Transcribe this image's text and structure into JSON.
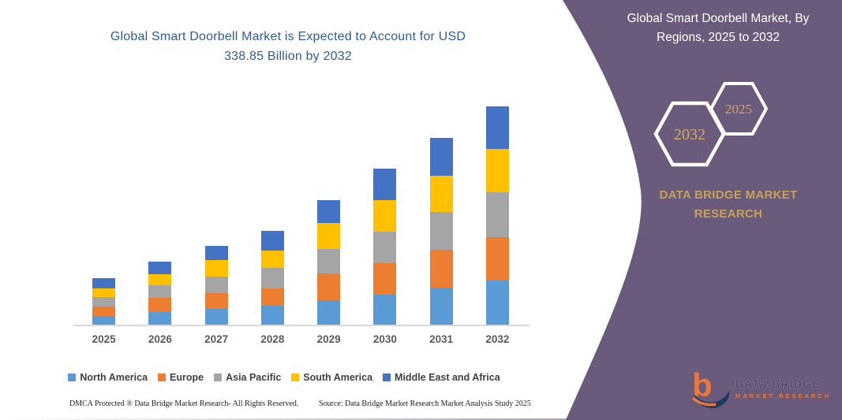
{
  "left": {
    "chart_title": "Global Smart Doorbell Market is Expected to Account for USD 338.85 Billion by 2032",
    "footer_dmca": "DMCA Protected ® Data Bridge Market Research-  All Rights Reserved.",
    "footer_source": "Source: Data Bridge Market Research  Market Analysis Study 2025",
    "title_color": "#2e5b9e"
  },
  "chart_data": {
    "type": "bar",
    "subtype": "stacked",
    "title": "Global Smart Doorbell Market is Expected to Account for USD 338.85 Billion by 2032",
    "unit": "USD Billion",
    "categories": [
      "2025",
      "2026",
      "2027",
      "2028",
      "2029",
      "2030",
      "2031",
      "2032"
    ],
    "series": [
      {
        "name": "North America",
        "color": "#5B9BD5",
        "values": [
          13.8,
          19.9,
          24.5,
          29.7,
          37.5,
          46.1,
          57.1,
          68.6
        ]
      },
      {
        "name": "Europe",
        "color": "#ED7D31",
        "values": [
          14.7,
          22.0,
          24.5,
          26.5,
          41.9,
          49.8,
          59.1,
          67.4
        ]
      },
      {
        "name": "Asia Pacific",
        "color": "#A5A5A5",
        "values": [
          13.8,
          19.2,
          26.1,
          31.4,
          37.9,
          48.9,
          58.3,
          69.3
        ]
      },
      {
        "name": "South America",
        "color": "#FFC000",
        "values": [
          13.8,
          17.5,
          24.8,
          27.3,
          40.4,
          48.9,
          57.1,
          67.5
        ]
      },
      {
        "name": "Middle East and Africa",
        "color": "#4472C4",
        "values": [
          15.5,
          18.7,
          22.4,
          30.6,
          35.1,
          48.1,
          58.7,
          66.05
        ]
      }
    ],
    "totals": [
      71.6,
      97.3,
      122.3,
      145.5,
      192.8,
      241.8,
      290.3,
      338.85
    ],
    "xlabel": "",
    "ylabel": "",
    "ylim": [
      0,
      360
    ],
    "grid": false,
    "y_axis_visible": false,
    "legend_position": "bottom"
  },
  "side_panel": {
    "title": "Global Smart Doorbell Market, By Regions, 2025 to 2032",
    "hexagon_back_label": "2032",
    "hexagon_front_label": "2025",
    "brand": "DATA BRIDGE MARKET RESEARCH",
    "panel_color": "#6a5a7c",
    "gold_color": "#c6a257"
  },
  "logo": {
    "name": "DATA BRIDGE",
    "subtitle": "MARKET RESEARCH"
  }
}
